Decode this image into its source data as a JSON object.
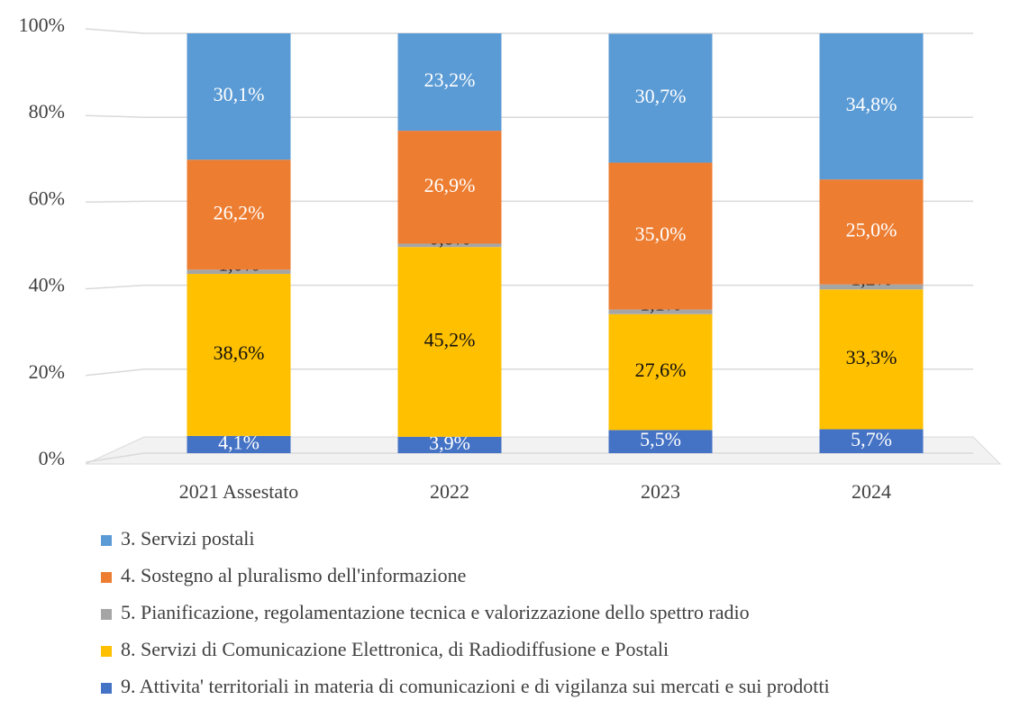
{
  "chart_data": {
    "type": "stacked_bar",
    "categories": [
      "2021 Assestato",
      "2022",
      "2023",
      "2024"
    ],
    "series": [
      {
        "name": "3. Servizi postali",
        "color": "#5b9bd5",
        "values": [
          30.1,
          23.2,
          30.7,
          34.8
        ],
        "value_labels": [
          "30,1%",
          "23,2%",
          "30,7%",
          "34,8%"
        ]
      },
      {
        "name": "4. Sostegno al pluralismo dell'informazione",
        "color": "#ed7d31",
        "values": [
          26.2,
          26.9,
          35.0,
          25.0
        ],
        "value_labels": [
          "26,2%",
          "26,9%",
          "35,0%",
          "25,0%"
        ]
      },
      {
        "name": "5. Pianificazione, regolamentazione tecnica e valorizzazione dello spettro radio",
        "color": "#a5a5a5",
        "values": [
          1.0,
          0.8,
          1.1,
          1.2
        ],
        "value_labels": [
          "1,0%",
          "0,8%",
          "1,1%",
          "1,2%"
        ]
      },
      {
        "name": "8. Servizi di Comunicazione Elettronica, di Radiodiffusione e Postali",
        "color": "#ffc000",
        "values": [
          38.6,
          45.2,
          27.6,
          33.3
        ],
        "value_labels": [
          "38,6%",
          "45,2%",
          "27,6%",
          "33,3%"
        ]
      },
      {
        "name": "9. Attivita' territoriali in materia di comunicazioni e di vigilanza sui mercati e sui prodotti",
        "color": "#4472c4",
        "values": [
          4.1,
          3.9,
          5.5,
          5.7
        ],
        "value_labels": [
          "4,1%",
          "3,9%",
          "5,5%",
          "5,7%"
        ]
      }
    ],
    "ylim": [
      0,
      100
    ],
    "yticks": [
      {
        "value": 0,
        "label": "0%"
      },
      {
        "value": 20,
        "label": "20%"
      },
      {
        "value": 40,
        "label": "40%"
      },
      {
        "value": 60,
        "label": "60%"
      },
      {
        "value": 80,
        "label": "80%"
      },
      {
        "value": 100,
        "label": "100%"
      }
    ],
    "grid": true,
    "legend": "bottom"
  }
}
